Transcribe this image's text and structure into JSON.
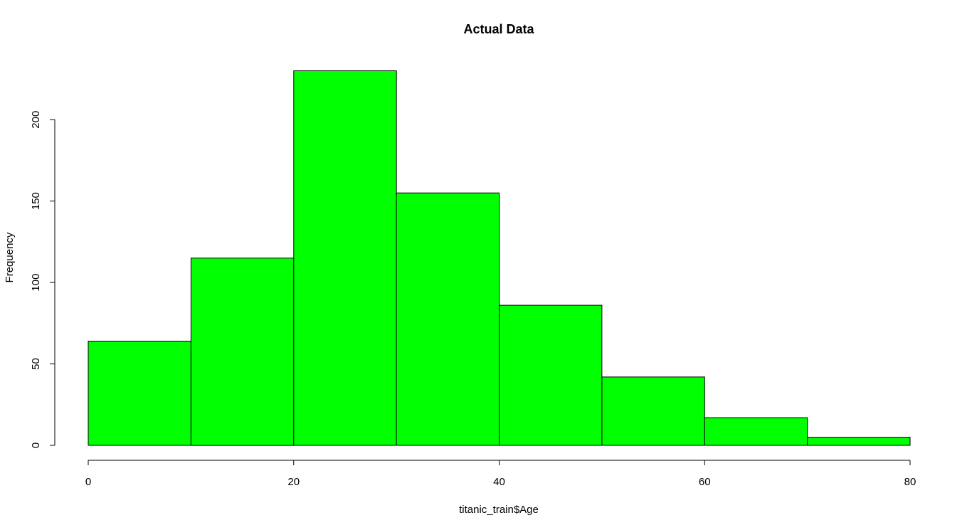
{
  "chart_data": {
    "type": "bar",
    "title": "Actual Data",
    "xlabel": "titanic_train$Age",
    "ylabel": "Frequency",
    "bins": [
      {
        "from": 0,
        "to": 10,
        "count": 64
      },
      {
        "from": 10,
        "to": 20,
        "count": 115
      },
      {
        "from": 20,
        "to": 30,
        "count": 230
      },
      {
        "from": 30,
        "to": 40,
        "count": 155
      },
      {
        "from": 40,
        "to": 50,
        "count": 86
      },
      {
        "from": 50,
        "to": 60,
        "count": 42
      },
      {
        "from": 60,
        "to": 70,
        "count": 17
      },
      {
        "from": 70,
        "to": 80,
        "count": 5
      }
    ],
    "xlim": [
      0,
      80
    ],
    "ylim": [
      0,
      230
    ],
    "x_ticks": [
      0,
      20,
      40,
      60,
      80
    ],
    "x_tick_labels": [
      "0",
      "20",
      "40",
      "60",
      "80"
    ],
    "y_ticks": [
      0,
      50,
      100,
      150,
      200
    ],
    "y_tick_labels": [
      "0",
      "50",
      "100",
      "150",
      "200"
    ],
    "bar_color": "#00ff00",
    "border_color": "#000000",
    "grid": false,
    "legend": "none"
  }
}
